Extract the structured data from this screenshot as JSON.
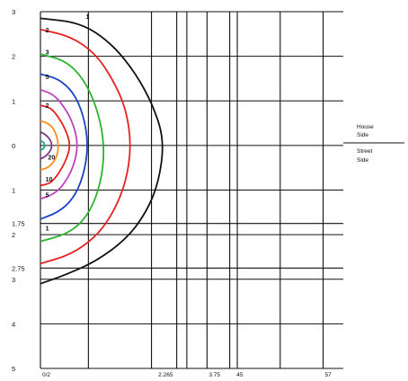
{
  "chart_data": {
    "type": "line",
    "subtype": "isolux-contour",
    "title": "",
    "xlabel": "",
    "ylabel": "",
    "xlim": [
      0,
      60
    ],
    "ylim": [
      -5,
      3
    ],
    "grid": true,
    "y_tick_labels": [
      {
        "y": 3,
        "label": "3"
      },
      {
        "y": 2,
        "label": "2"
      },
      {
        "y": 1,
        "label": "1"
      },
      {
        "y": 0,
        "label": "0"
      },
      {
        "y": -1,
        "label": "1"
      },
      {
        "y": -1.75,
        "label": "1.75"
      },
      {
        "y": -2,
        "label": "2"
      },
      {
        "y": -2.75,
        "label": "2.75"
      },
      {
        "y": -3,
        "label": "3"
      },
      {
        "y": -4,
        "label": "4"
      },
      {
        "y": -5,
        "label": "5"
      }
    ],
    "x_tick_labels": [
      {
        "x": 0,
        "label": "0/2"
      },
      {
        "x": 23,
        "label": "2.265"
      },
      {
        "x": 33,
        "label": "3.75"
      },
      {
        "x": 38.5,
        "label": "45"
      },
      {
        "x": 56,
        "label": "57"
      }
    ],
    "v_gridlines": [
      0,
      9.5,
      22,
      27,
      29,
      33,
      37.5,
      39,
      47.5,
      56
    ],
    "h_gridlines": [
      3,
      2,
      1,
      0,
      -1,
      -1.75,
      -2,
      -2.75,
      -3,
      -4,
      -5
    ],
    "side_labels": {
      "house": [
        "House",
        "Side"
      ],
      "street": [
        "Street",
        "Side"
      ]
    },
    "contour_labels": [
      {
        "text": "1",
        "x": 9,
        "y": 2.9
      },
      {
        "text": "2",
        "x": 1,
        "y": 2.6
      },
      {
        "text": "3",
        "x": 1,
        "y": 2.1
      },
      {
        "text": "5",
        "x": 1,
        "y": 1.55
      },
      {
        "text": "2",
        "x": 1,
        "y": 0.9
      },
      {
        "text": "20",
        "x": 1.5,
        "y": -0.25
      },
      {
        "text": "10",
        "x": 1,
        "y": -0.75
      },
      {
        "text": "5",
        "x": 1,
        "y": -1.1
      },
      {
        "text": "1",
        "x": 1,
        "y": -1.85
      }
    ],
    "series": [
      {
        "color": "#111111",
        "points": [
          [
            0,
            2.85
          ],
          [
            8,
            2.75
          ],
          [
            14,
            2.3
          ],
          [
            19,
            1.6
          ],
          [
            22.5,
            0.85
          ],
          [
            24.5,
            0.1
          ],
          [
            23.5,
            -0.8
          ],
          [
            21,
            -1.5
          ],
          [
            17,
            -2.1
          ],
          [
            11,
            -2.6
          ],
          [
            5,
            -2.9
          ],
          [
            0,
            -3.1
          ]
        ]
      },
      {
        "color": "#e82020",
        "points": [
          [
            0,
            2.6
          ],
          [
            6,
            2.45
          ],
          [
            11,
            2.05
          ],
          [
            14.5,
            1.45
          ],
          [
            17,
            0.8
          ],
          [
            18,
            0
          ],
          [
            17,
            -0.8
          ],
          [
            14.5,
            -1.5
          ],
          [
            11,
            -2.05
          ],
          [
            6,
            -2.45
          ],
          [
            0,
            -2.65
          ]
        ]
      },
      {
        "color": "#2cb32c",
        "points": [
          [
            0,
            2.05
          ],
          [
            5,
            1.9
          ],
          [
            8.5,
            1.5
          ],
          [
            11,
            0.9
          ],
          [
            12.5,
            0.2
          ],
          [
            12.5,
            -0.5
          ],
          [
            11,
            -1.2
          ],
          [
            8.5,
            -1.7
          ],
          [
            5,
            -2.0
          ],
          [
            0,
            -2.15
          ]
        ]
      },
      {
        "color": "#1a44c8",
        "points": [
          [
            0,
            1.6
          ],
          [
            3.5,
            1.5
          ],
          [
            6.5,
            1.2
          ],
          [
            8.5,
            0.7
          ],
          [
            9.5,
            0
          ],
          [
            8.5,
            -0.7
          ],
          [
            6.5,
            -1.2
          ],
          [
            3.5,
            -1.5
          ],
          [
            0,
            -1.65
          ]
        ]
      },
      {
        "color": "#c040c0",
        "points": [
          [
            0,
            1.25
          ],
          [
            2.5,
            1.15
          ],
          [
            4.5,
            0.9
          ],
          [
            6.5,
            0.5
          ],
          [
            7.5,
            0
          ],
          [
            6.5,
            -0.5
          ],
          [
            4.5,
            -0.9
          ],
          [
            2.5,
            -1.1
          ],
          [
            0,
            -1.2
          ]
        ]
      },
      {
        "color": "#e82020",
        "points": [
          [
            0,
            0.9
          ],
          [
            2,
            0.85
          ],
          [
            3.5,
            0.65
          ],
          [
            5,
            0.35
          ],
          [
            6,
            0
          ],
          [
            5,
            -0.35
          ],
          [
            3.5,
            -0.65
          ],
          [
            2,
            -0.85
          ],
          [
            0,
            -0.9
          ]
        ]
      },
      {
        "color": "#ff8c1a",
        "points": [
          [
            0,
            0.55
          ],
          [
            1.5,
            0.5
          ],
          [
            2.8,
            0.35
          ],
          [
            3.5,
            0.1
          ],
          [
            3.5,
            -0.15
          ],
          [
            2.8,
            -0.35
          ],
          [
            1.5,
            -0.5
          ],
          [
            0,
            -0.55
          ]
        ]
      },
      {
        "color": "#7a3a8a",
        "points": [
          [
            0,
            0.3
          ],
          [
            1,
            0.25
          ],
          [
            2,
            0.12
          ],
          [
            2.3,
            0
          ],
          [
            2,
            -0.12
          ],
          [
            1,
            -0.25
          ],
          [
            0,
            -0.3
          ]
        ]
      },
      {
        "color": "#20a090",
        "points": [
          [
            0,
            0.1
          ],
          [
            0.6,
            0.08
          ],
          [
            0.9,
            0
          ],
          [
            0.6,
            -0.08
          ],
          [
            0,
            -0.1
          ]
        ]
      }
    ]
  }
}
